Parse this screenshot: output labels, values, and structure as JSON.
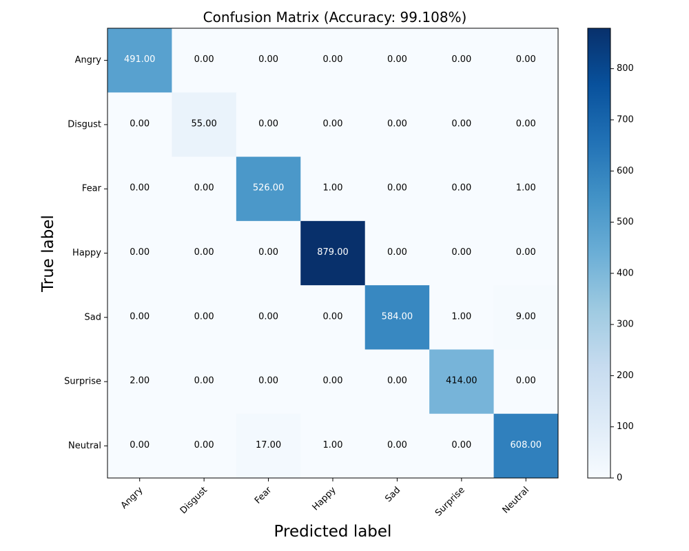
{
  "chart_data": {
    "type": "heatmap",
    "title": "Confusion Matrix (Accuracy: 99.108%)",
    "xlabel": "Predicted label",
    "ylabel": "True label",
    "categories_x": [
      "Angry",
      "Disgust",
      "Fear",
      "Happy",
      "Sad",
      "Surprise",
      "Neutral"
    ],
    "categories_y": [
      "Angry",
      "Disgust",
      "Fear",
      "Happy",
      "Sad",
      "Surprise",
      "Neutral"
    ],
    "matrix": [
      [
        491,
        0,
        0,
        0,
        0,
        0,
        0
      ],
      [
        0,
        55,
        0,
        0,
        0,
        0,
        0
      ],
      [
        0,
        0,
        526,
        1,
        0,
        0,
        1
      ],
      [
        0,
        0,
        0,
        879,
        0,
        0,
        0
      ],
      [
        0,
        0,
        0,
        0,
        584,
        1,
        9
      ],
      [
        2,
        0,
        0,
        0,
        0,
        414,
        0
      ],
      [
        0,
        0,
        17,
        1,
        0,
        0,
        608
      ]
    ],
    "cell_labels": [
      [
        "491.00",
        "0.00",
        "0.00",
        "0.00",
        "0.00",
        "0.00",
        "0.00"
      ],
      [
        "0.00",
        "55.00",
        "0.00",
        "0.00",
        "0.00",
        "0.00",
        "0.00"
      ],
      [
        "0.00",
        "0.00",
        "526.00",
        "1.00",
        "0.00",
        "0.00",
        "1.00"
      ],
      [
        "0.00",
        "0.00",
        "0.00",
        "879.00",
        "0.00",
        "0.00",
        "0.00"
      ],
      [
        "0.00",
        "0.00",
        "0.00",
        "0.00",
        "584.00",
        "1.00",
        "9.00"
      ],
      [
        "2.00",
        "0.00",
        "0.00",
        "0.00",
        "0.00",
        "414.00",
        "0.00"
      ],
      [
        "0.00",
        "0.00",
        "17.00",
        "1.00",
        "0.00",
        "0.00",
        "608.00"
      ]
    ],
    "colormap": "Blues",
    "colorbar": {
      "range": [
        0,
        879
      ],
      "ticks": [
        0,
        100,
        200,
        300,
        400,
        500,
        600,
        700,
        800
      ]
    }
  }
}
